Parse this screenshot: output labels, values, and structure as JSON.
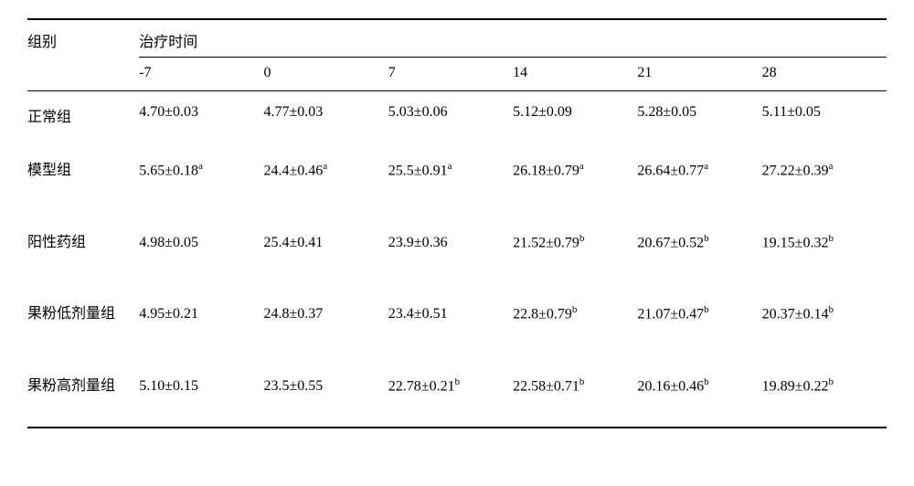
{
  "table": {
    "group_header": "组别",
    "time_header": "治疗时间",
    "time_points": [
      "-7",
      "0",
      "7",
      "14",
      "21",
      "28"
    ],
    "rows": [
      {
        "label": "正常组",
        "tall": false,
        "cells": [
          {
            "v": "4.70±0.03",
            "sup": ""
          },
          {
            "v": "4.77±0.03",
            "sup": ""
          },
          {
            "v": "5.03±0.06",
            "sup": ""
          },
          {
            "v": "5.12±0.09",
            "sup": ""
          },
          {
            "v": "5.28±0.05",
            "sup": ""
          },
          {
            "v": "5.11±0.05",
            "sup": ""
          }
        ]
      },
      {
        "label": "模型组",
        "tall": true,
        "cells": [
          {
            "v": "5.65±0.18",
            "sup": "a"
          },
          {
            "v": "24.4±0.46",
            "sup": "a"
          },
          {
            "v": "25.5±0.91",
            "sup": "a"
          },
          {
            "v": "26.18±0.79",
            "sup": "a"
          },
          {
            "v": "26.64±0.77",
            "sup": "a"
          },
          {
            "v": "27.22±0.39",
            "sup": "a"
          }
        ]
      },
      {
        "label": "阳性药组",
        "tall": true,
        "cells": [
          {
            "v": "4.98±0.05",
            "sup": ""
          },
          {
            "v": "25.4±0.41",
            "sup": ""
          },
          {
            "v": "23.9±0.36",
            "sup": ""
          },
          {
            "v": "21.52±0.79",
            "sup": "b"
          },
          {
            "v": "20.67±0.52",
            "sup": "b"
          },
          {
            "v": "19.15±0.32",
            "sup": "b"
          }
        ]
      },
      {
        "label": "果粉低剂量组",
        "tall": true,
        "cells": [
          {
            "v": "4.95±0.21",
            "sup": ""
          },
          {
            "v": "24.8±0.37",
            "sup": ""
          },
          {
            "v": "23.4±0.51",
            "sup": ""
          },
          {
            "v": "22.8±0.79",
            "sup": "b"
          },
          {
            "v": "21.07±0.47",
            "sup": "b"
          },
          {
            "v": "20.37±0.14",
            "sup": "b"
          }
        ]
      },
      {
        "label": "果粉高剂量组",
        "tall": true,
        "cells": [
          {
            "v": "5.10±0.15",
            "sup": ""
          },
          {
            "v": "23.5±0.55",
            "sup": ""
          },
          {
            "v": "22.78±0.21",
            "sup": "b"
          },
          {
            "v": "22.58±0.71",
            "sup": "b"
          },
          {
            "v": "20.16±0.46",
            "sup": "b"
          },
          {
            "v": "19.89±0.22",
            "sup": "b"
          }
        ]
      }
    ]
  }
}
